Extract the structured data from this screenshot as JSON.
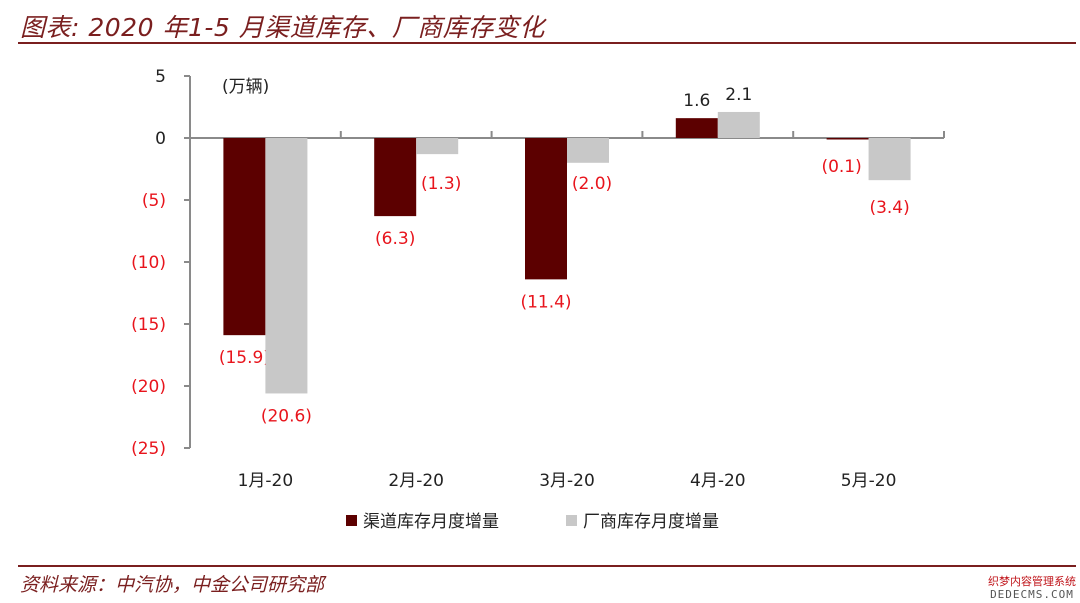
{
  "header": {
    "title": "图表: 2020 年1-5 月渠道库存、厂商库存变化"
  },
  "footer": {
    "source": "资料来源：中汽协，中金公司研究部"
  },
  "watermark": {
    "cn": "织梦内容管理系统",
    "en": "DEDECMS.COM"
  },
  "colors": {
    "accent": "#7a1f1f",
    "series1": "#5c0000",
    "series2": "#c8c8c8",
    "negative_text": "#e8141c",
    "positive_text": "#222222"
  },
  "chart_data": {
    "type": "bar",
    "unit": "(万辆)",
    "categories": [
      "1月-20",
      "2月-20",
      "3月-20",
      "4月-20",
      "5月-20"
    ],
    "series": [
      {
        "name": "渠道库存月度增量",
        "values": [
          -15.9,
          -6.3,
          -11.4,
          1.6,
          -0.1
        ]
      },
      {
        "name": "厂商库存月度增量",
        "values": [
          -20.6,
          -1.3,
          -2.0,
          2.1,
          -3.4
        ]
      }
    ],
    "data_labels": [
      [
        "(15.9)",
        "(6.3)",
        "(11.4)",
        "1.6",
        "(0.1)"
      ],
      [
        "(20.6)",
        "(1.3)",
        "(2.0)",
        "2.1",
        "(3.4)"
      ]
    ],
    "ylim": [
      -25,
      5
    ],
    "yticks": [
      5,
      0,
      -5,
      -10,
      -15,
      -20,
      -25
    ],
    "ytick_labels": [
      "5",
      "0",
      "(5)",
      "(10)",
      "(15)",
      "(20)",
      "(25)"
    ],
    "legend_position": "bottom",
    "grid": false
  }
}
